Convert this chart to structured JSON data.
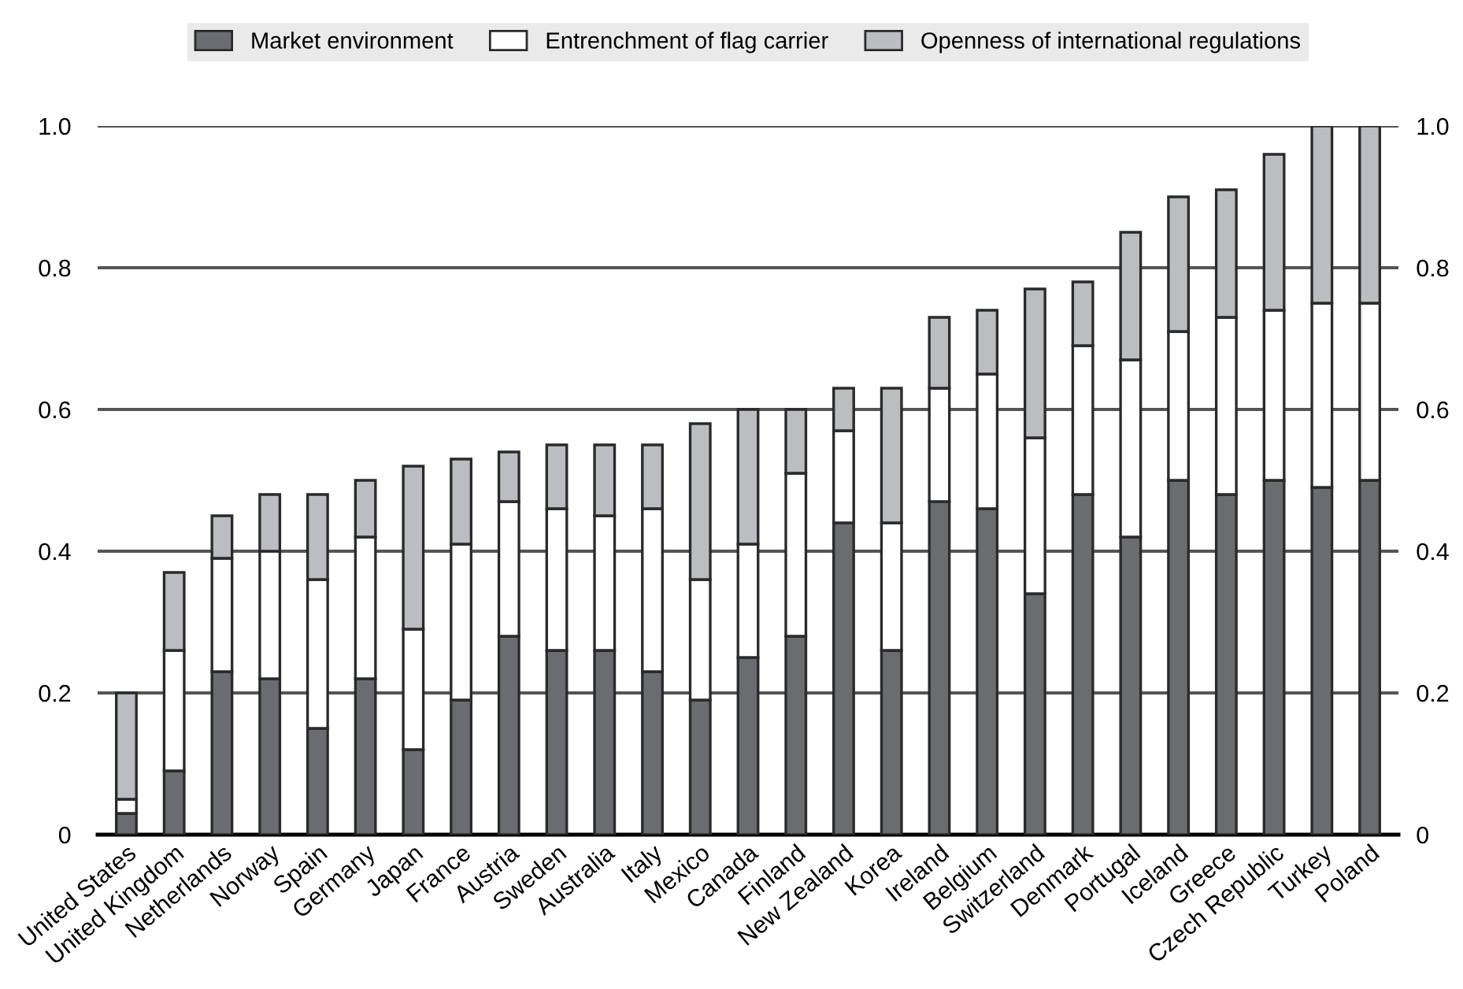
{
  "chart_data": {
    "type": "bar",
    "stacked": true,
    "categories": [
      "United States",
      "United Kingdom",
      "Netherlands",
      "Norway",
      "Spain",
      "Germany",
      "Japan",
      "France",
      "Austria",
      "Sweden",
      "Australia",
      "Italy",
      "Mexico",
      "Canada",
      "Finland",
      "New Zealand",
      "Korea",
      "Ireland",
      "Belgium",
      "Switzerland",
      "Denmark",
      "Portugal",
      "Iceland",
      "Greece",
      "Czech Republic",
      "Turkey",
      "Poland"
    ],
    "series": [
      {
        "name": "Market environment",
        "color": "#6b6c70",
        "values": [
          0.03,
          0.09,
          0.23,
          0.22,
          0.15,
          0.22,
          0.12,
          0.19,
          0.28,
          0.26,
          0.26,
          0.23,
          0.19,
          0.25,
          0.28,
          0.44,
          0.26,
          0.47,
          0.46,
          0.34,
          0.48,
          0.42,
          0.5,
          0.48,
          0.5,
          0.49,
          0.5
        ]
      },
      {
        "name": "Entrenchment of flag carrier",
        "color": "#ffffff",
        "values": [
          0.02,
          0.17,
          0.16,
          0.18,
          0.21,
          0.2,
          0.17,
          0.22,
          0.19,
          0.2,
          0.19,
          0.23,
          0.17,
          0.16,
          0.23,
          0.13,
          0.18,
          0.16,
          0.19,
          0.22,
          0.21,
          0.25,
          0.21,
          0.25,
          0.24,
          0.26,
          0.25
        ]
      },
      {
        "name": "Openness of international regulations",
        "color": "#bcbdc1",
        "values": [
          0.15,
          0.11,
          0.06,
          0.08,
          0.12,
          0.08,
          0.23,
          0.12,
          0.07,
          0.09,
          0.1,
          0.09,
          0.22,
          0.19,
          0.09,
          0.06,
          0.19,
          0.1,
          0.09,
          0.21,
          0.09,
          0.18,
          0.19,
          0.18,
          0.22,
          0.25,
          0.25
        ]
      }
    ],
    "ylim": [
      0,
      1.0
    ],
    "yticks": [
      0,
      0.2,
      0.4,
      0.6,
      0.8,
      {
        "value": 1.0,
        "label": "1.0"
      }
    ],
    "y2lim": [
      0,
      1.0
    ],
    "y2ticks": [
      0,
      0.2,
      0.4,
      0.6,
      0.8,
      {
        "value": 1.0,
        "label": "1.0"
      }
    ],
    "grid": "y",
    "legend": "top"
  }
}
